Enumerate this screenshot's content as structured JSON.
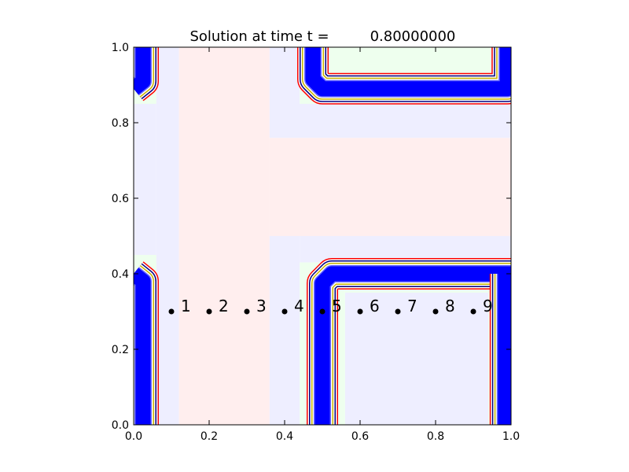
{
  "chart_data": {
    "type": "scatter",
    "title": "Solution at time t =",
    "time_value": "0.80000000",
    "xlabel": "",
    "ylabel": "",
    "xlim": [
      0.0,
      1.0
    ],
    "ylim": [
      0.0,
      1.0
    ],
    "x_ticks": [
      {
        "value": 0.0,
        "label": "0.0"
      },
      {
        "value": 0.2,
        "label": "0.2"
      },
      {
        "value": 0.4,
        "label": "0.4"
      },
      {
        "value": 0.6,
        "label": "0.6"
      },
      {
        "value": 0.8,
        "label": "0.8"
      },
      {
        "value": 1.0,
        "label": "1.0"
      }
    ],
    "y_ticks": [
      {
        "value": 0.0,
        "label": "0.0"
      },
      {
        "value": 0.2,
        "label": "0.2"
      },
      {
        "value": 0.4,
        "label": "0.4"
      },
      {
        "value": 0.6,
        "label": "0.6"
      },
      {
        "value": 0.8,
        "label": "0.8"
      },
      {
        "value": 1.0,
        "label": "1.0"
      }
    ],
    "gauges": [
      {
        "x": 0.1,
        "y": 0.3,
        "label": "1"
      },
      {
        "x": 0.2,
        "y": 0.3,
        "label": "2"
      },
      {
        "x": 0.3,
        "y": 0.3,
        "label": "3"
      },
      {
        "x": 0.4,
        "y": 0.3,
        "label": "4"
      },
      {
        "x": 0.5,
        "y": 0.3,
        "label": "5"
      },
      {
        "x": 0.6,
        "y": 0.3,
        "label": "6"
      },
      {
        "x": 0.7,
        "y": 0.3,
        "label": "7"
      },
      {
        "x": 0.8,
        "y": 0.3,
        "label": "8"
      },
      {
        "x": 0.9,
        "y": 0.3,
        "label": "9"
      }
    ],
    "background_regions": [
      {
        "x": [
          0.0,
          0.06
        ],
        "y": [
          0.0,
          1.0
        ],
        "color": "#eeeeff"
      },
      {
        "x": [
          0.06,
          0.12
        ],
        "y": [
          0.0,
          1.0
        ],
        "color": "#eeeeff"
      },
      {
        "x": [
          0.12,
          0.36
        ],
        "y": [
          0.0,
          1.0
        ],
        "color": "#ffeeee"
      },
      {
        "x": [
          0.36,
          1.0
        ],
        "y": [
          0.5,
          0.76
        ],
        "color": "#ffeeee"
      },
      {
        "x": [
          0.36,
          1.0
        ],
        "y": [
          0.76,
          0.85
        ],
        "color": "#eeeeff"
      },
      {
        "x": [
          0.36,
          0.44
        ],
        "y": [
          0.85,
          1.0
        ],
        "color": "#eeeeff"
      },
      {
        "x": [
          0.36,
          0.44
        ],
        "y": [
          0.0,
          0.5
        ],
        "color": "#eeeeff"
      },
      {
        "x": [
          0.44,
          1.0
        ],
        "y": [
          0.43,
          0.5
        ],
        "color": "#eeeeff"
      },
      {
        "x": [
          0.56,
          0.94
        ],
        "y": [
          0.0,
          0.35
        ],
        "color": "#eeeeff"
      },
      {
        "x": [
          0.0,
          0.06
        ],
        "y": [
          0.0,
          0.45
        ],
        "color": "#eeffee"
      },
      {
        "x": [
          0.0,
          0.06
        ],
        "y": [
          0.85,
          1.0
        ],
        "color": "#eeffee"
      },
      {
        "x": [
          0.44,
          1.0
        ],
        "y": [
          0.85,
          1.0
        ],
        "color": "#eeffee"
      },
      {
        "x": [
          0.44,
          0.56
        ],
        "y": [
          0.0,
          0.43
        ],
        "color": "#eeffee"
      },
      {
        "x": [
          0.56,
          1.0
        ],
        "y": [
          0.35,
          0.43
        ],
        "color": "#eeffee"
      },
      {
        "x": [
          0.94,
          1.0
        ],
        "y": [
          0.0,
          0.35
        ],
        "color": "#eeffee"
      }
    ],
    "contour_paths": [
      {
        "kind": "left-lower",
        "points": [
          [
            0.0,
            0.4
          ],
          [
            0.025,
            0.38
          ],
          [
            0.025,
            0.0
          ]
        ]
      },
      {
        "kind": "left-upper",
        "points": [
          [
            0.0,
            0.89
          ],
          [
            0.025,
            0.91
          ],
          [
            0.025,
            1.0
          ]
        ]
      },
      {
        "kind": "top-channel",
        "points": [
          [
            0.475,
            1.0
          ],
          [
            0.475,
            0.915
          ],
          [
            0.5,
            0.89
          ],
          [
            0.99,
            0.89
          ],
          [
            0.99,
            1.0
          ]
        ]
      },
      {
        "kind": "bottom-channel",
        "points": [
          [
            0.5,
            0.0
          ],
          [
            0.5,
            0.375
          ],
          [
            0.525,
            0.4
          ],
          [
            1.0,
            0.4
          ]
        ]
      },
      {
        "kind": "right-column",
        "points": [
          [
            0.985,
            0.4
          ],
          [
            0.985,
            0.0
          ]
        ]
      }
    ],
    "colors": {
      "wet_fill": "#0000ff",
      "contour_red": "#ff0000",
      "contour_dark": "#000080",
      "contour_light": "#6666ff",
      "contour_yellow": "#c8b400",
      "contour_green": "#008000",
      "gauge_marker": "#000000"
    }
  }
}
